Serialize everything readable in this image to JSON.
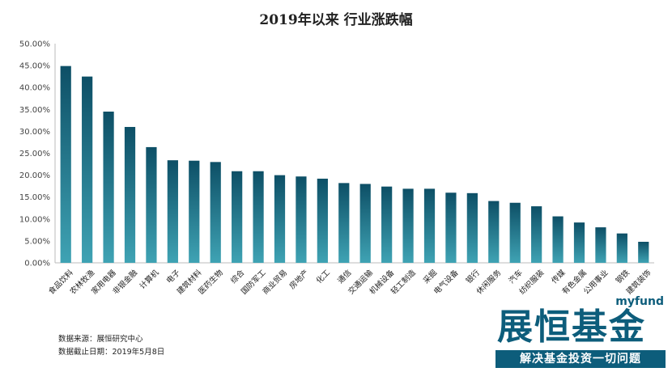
{
  "chart_data": {
    "type": "bar",
    "title": "2019年以来 行业涨跌幅",
    "categories": [
      "食品饮料",
      "农林牧渔",
      "家用电器",
      "非银金融",
      "计算机",
      "电子",
      "建筑材料",
      "医药生物",
      "综合",
      "国防军工",
      "商业贸易",
      "房地产",
      "化工",
      "通信",
      "交通运输",
      "机械设备",
      "轻工制造",
      "采掘",
      "电气设备",
      "银行",
      "休闲服务",
      "汽车",
      "纺织服装",
      "传媒",
      "有色金属",
      "公用事业",
      "钢铁",
      "建筑装饰"
    ],
    "values": [
      44.9,
      42.5,
      34.5,
      31.0,
      26.4,
      23.4,
      23.3,
      23.0,
      20.9,
      20.9,
      20.0,
      19.7,
      19.2,
      18.2,
      18.0,
      17.4,
      16.9,
      16.9,
      16.0,
      15.9,
      14.1,
      13.7,
      12.9,
      10.6,
      9.2,
      8.1,
      6.7,
      4.8
    ],
    "yticks": [
      "0.00%",
      "5.00%",
      "10.00%",
      "15.00%",
      "20.00%",
      "25.00%",
      "30.00%",
      "35.00%",
      "40.00%",
      "45.00%",
      "50.00%"
    ],
    "ylim": [
      0,
      50
    ],
    "grid": false,
    "bar_color_top": "#0d4f66",
    "bar_color_bottom": "#3fa3b4"
  },
  "source": {
    "line1": "数据来源：展恒研究中心",
    "line2": "数据截止日期：2019年5月8日"
  },
  "logo": {
    "brand": "myfund",
    "name": "展恒基金",
    "slogan": "解决基金投资一切问题"
  }
}
